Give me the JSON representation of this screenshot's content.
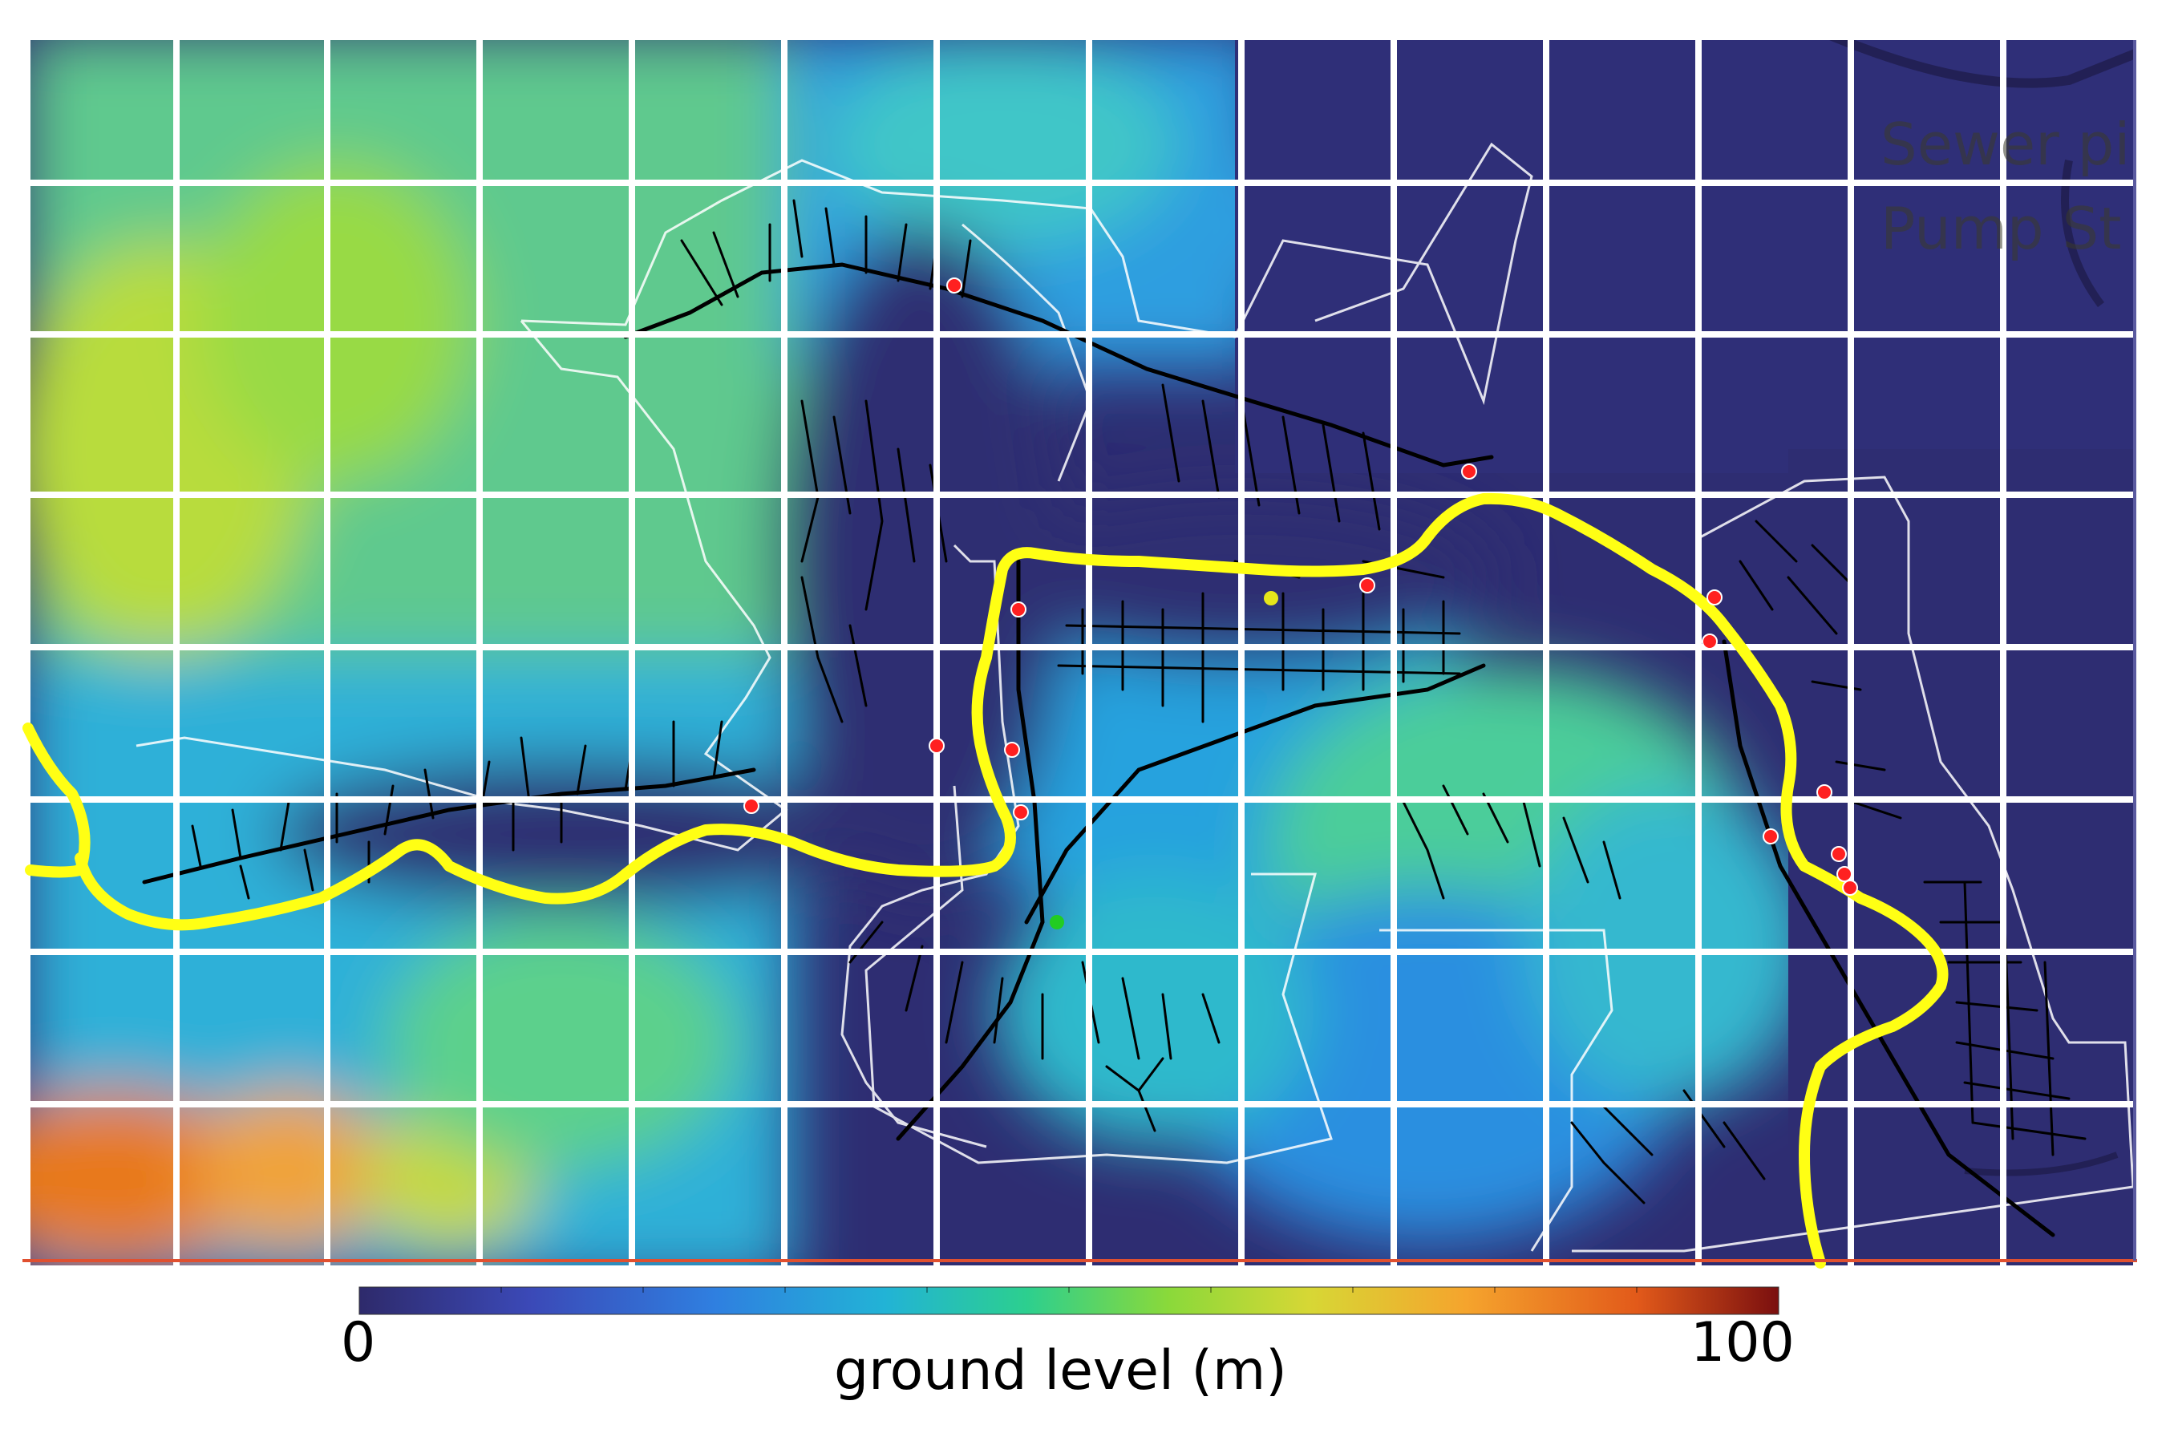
{
  "legend": {
    "entries": [
      "Sewer pi",
      "Pump St"
    ]
  },
  "colorbar": {
    "min_label": "0",
    "max_label": "100",
    "title": "ground level (m)",
    "range": [
      0,
      100
    ],
    "colors": [
      "#2e2a6b",
      "#3b49b7",
      "#2f7fe0",
      "#22b3d6",
      "#2ccf8f",
      "#8ad93a",
      "#d7d735",
      "#f5a42d",
      "#e25a1a",
      "#7a0f0f"
    ]
  },
  "colors": {
    "river": "#ffff14",
    "grid": "#ffffff",
    "catchment_outline": "#ffffff",
    "sewer_pipes": "#000000",
    "pump_station": "#ff2020",
    "marker_yellow": "#e6e61a",
    "marker_green": "#22cc22"
  }
}
